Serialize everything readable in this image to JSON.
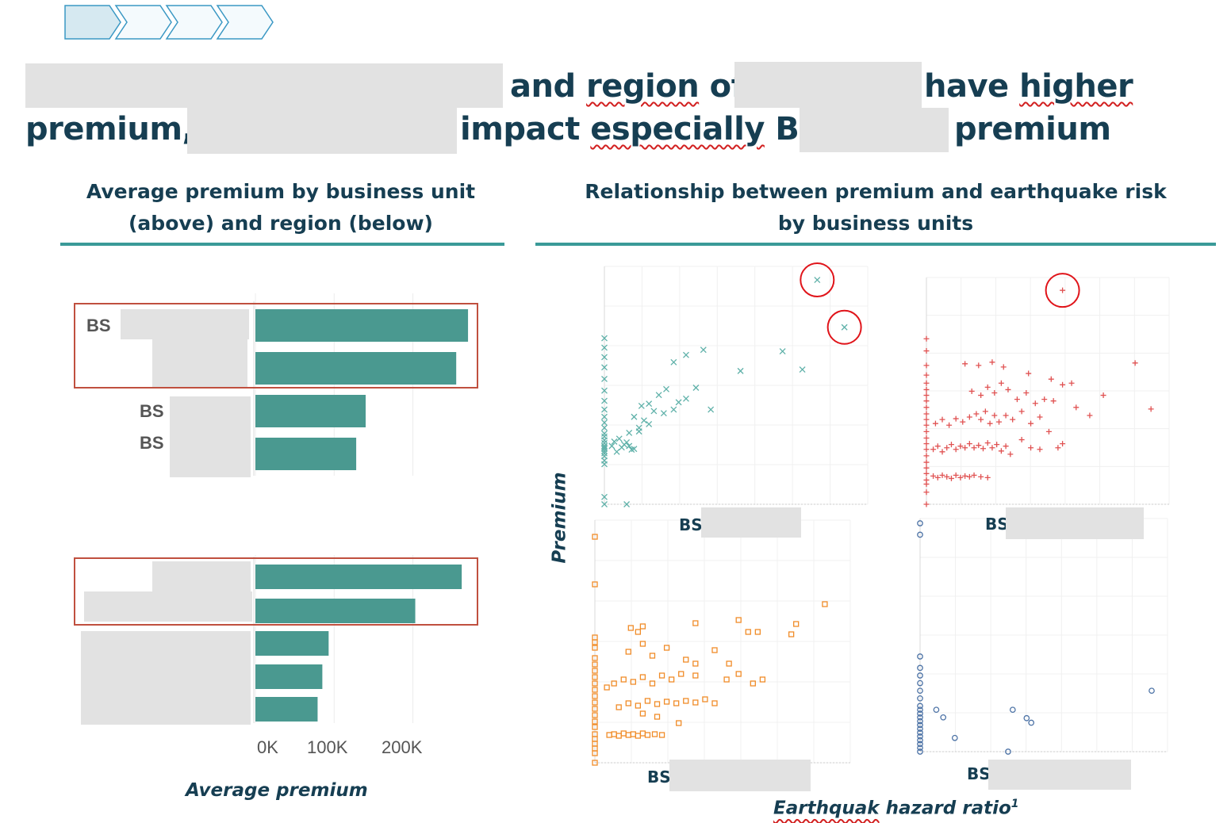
{
  "headline": {
    "line1_part1": "and",
    "line1_part2": "region",
    "line1_part3": "of",
    "line1_part4": "have",
    "line1_part5": "higher",
    "line2_part1": "premium,",
    "line2_part2": "impact",
    "line2_part3": "especially",
    "line2_part4": "BS",
    "line2_part5": "premium"
  },
  "left_section": {
    "title_line1": "Average premium by business unit",
    "title_line2": "(above) and region (below)",
    "xlabel": "Average premium"
  },
  "right_section": {
    "title_line1": "Relationship between premium and earthquake risk",
    "title_line2": "by business units",
    "ylabel": "Premium",
    "xlabel_main": "Earthquak",
    "xlabel_rest": " hazard ratio",
    "xlabel_sup": "1",
    "panel_prefix": "BS"
  },
  "colors": {
    "bar": "#4a9990",
    "highlight_box": "#c0503f",
    "teal": "#5fb1a9",
    "red": "#e05252",
    "orange": "#f08c28",
    "blue": "#4d73a6",
    "circle": "#e0141a",
    "chevron_fill": "#d6e9f1",
    "chevron_stroke": "#3a98c4"
  },
  "chart_data": [
    {
      "type": "bar",
      "orientation": "horizontal",
      "panel": "business unit",
      "categories": [
        "BS",
        "",
        "BS",
        "BS"
      ],
      "values": [
        270000,
        255000,
        140000,
        128000
      ],
      "xlim": [
        0,
        280000
      ]
    },
    {
      "type": "bar",
      "orientation": "horizontal",
      "panel": "region",
      "categories": [
        "",
        "",
        "",
        "",
        ""
      ],
      "values": [
        262000,
        203000,
        93000,
        85000,
        79000
      ],
      "xticks": [
        "0K",
        "100K",
        "200K"
      ],
      "xlim": [
        0,
        280000
      ]
    },
    {
      "type": "scatter",
      "panel": "teal",
      "marker": "x",
      "points": [
        [
          0.0,
          0.55
        ],
        [
          0.0,
          0.6
        ],
        [
          0.0,
          0.66
        ],
        [
          0.0,
          0.7
        ],
        [
          0.0,
          0.73
        ],
        [
          0.0,
          0.76
        ],
        [
          0.0,
          0.78
        ],
        [
          0.0,
          0.8
        ],
        [
          0.0,
          0.84
        ],
        [
          0.0,
          0.88
        ],
        [
          0.0,
          0.93
        ],
        [
          0.0,
          0.97
        ],
        [
          0.0,
          1.05
        ],
        [
          0.0,
          1.12
        ],
        [
          0.0,
          1.2
        ],
        [
          0.0,
          1.3
        ],
        [
          0.0,
          1.42
        ],
        [
          0.0,
          1.56
        ],
        [
          0.0,
          1.72
        ],
        [
          0.0,
          1.88
        ],
        [
          0.0,
          2.02
        ],
        [
          0.0,
          2.15
        ],
        [
          0.0,
          2.28
        ],
        [
          0.0,
          0.1
        ],
        [
          0.0,
          0.0
        ],
        [
          0.03,
          0.8
        ],
        [
          0.05,
          0.72
        ],
        [
          0.07,
          0.78
        ],
        [
          0.09,
          0.85
        ],
        [
          0.11,
          0.75
        ],
        [
          0.06,
          0.9
        ],
        [
          0.08,
          0.82
        ],
        [
          0.04,
          0.86
        ],
        [
          0.1,
          0.8
        ],
        [
          0.12,
          0.76
        ],
        [
          0.09,
          0.0
        ],
        [
          0.1,
          0.98
        ],
        [
          0.12,
          1.2
        ],
        [
          0.14,
          1.05
        ],
        [
          0.15,
          1.35
        ],
        [
          0.16,
          1.15
        ],
        [
          0.18,
          1.38
        ],
        [
          0.2,
          1.28
        ],
        [
          0.22,
          1.5
        ],
        [
          0.24,
          1.25
        ],
        [
          0.25,
          1.58
        ],
        [
          0.28,
          1.3
        ],
        [
          0.3,
          1.4
        ],
        [
          0.33,
          1.45
        ],
        [
          0.37,
          1.6
        ],
        [
          0.43,
          1.3
        ],
        [
          0.28,
          1.95
        ],
        [
          0.33,
          2.05
        ],
        [
          0.4,
          2.12
        ],
        [
          0.55,
          1.83
        ],
        [
          0.72,
          2.1
        ],
        [
          0.8,
          1.85
        ],
        [
          0.18,
          1.1
        ],
        [
          0.14,
          1.0
        ],
        [
          0.86,
          3.08
        ],
        [
          0.97,
          2.43
        ]
      ],
      "circled": [
        [
          0.86,
          3.08
        ],
        [
          0.97,
          2.43
        ]
      ]
    },
    {
      "type": "scatter",
      "panel": "red",
      "marker": "+",
      "points": [
        [
          0.0,
          0.0
        ],
        [
          0.0,
          0.15
        ],
        [
          0.0,
          0.25
        ],
        [
          0.0,
          0.3
        ],
        [
          0.0,
          0.38
        ],
        [
          0.0,
          0.45
        ],
        [
          0.0,
          0.52
        ],
        [
          0.0,
          0.6
        ],
        [
          0.0,
          0.68
        ],
        [
          0.0,
          0.75
        ],
        [
          0.0,
          0.82
        ],
        [
          0.0,
          0.9
        ],
        [
          0.0,
          0.98
        ],
        [
          0.0,
          1.05
        ],
        [
          0.0,
          1.12
        ],
        [
          0.0,
          1.2
        ],
        [
          0.0,
          1.28
        ],
        [
          0.0,
          1.35
        ],
        [
          0.0,
          1.42
        ],
        [
          0.0,
          1.5
        ],
        [
          0.0,
          1.6
        ],
        [
          0.0,
          1.72
        ],
        [
          0.0,
          1.9
        ],
        [
          0.0,
          2.05
        ],
        [
          0.03,
          0.35
        ],
        [
          0.05,
          0.33
        ],
        [
          0.07,
          0.36
        ],
        [
          0.09,
          0.34
        ],
        [
          0.11,
          0.32
        ],
        [
          0.13,
          0.36
        ],
        [
          0.15,
          0.33
        ],
        [
          0.17,
          0.35
        ],
        [
          0.19,
          0.34
        ],
        [
          0.21,
          0.36
        ],
        [
          0.24,
          0.34
        ],
        [
          0.27,
          0.33
        ],
        [
          0.03,
          0.68
        ],
        [
          0.05,
          0.72
        ],
        [
          0.07,
          0.65
        ],
        [
          0.09,
          0.7
        ],
        [
          0.11,
          0.74
        ],
        [
          0.13,
          0.68
        ],
        [
          0.15,
          0.72
        ],
        [
          0.17,
          0.7
        ],
        [
          0.19,
          0.75
        ],
        [
          0.21,
          0.7
        ],
        [
          0.23,
          0.73
        ],
        [
          0.25,
          0.69
        ],
        [
          0.27,
          0.76
        ],
        [
          0.29,
          0.7
        ],
        [
          0.31,
          0.74
        ],
        [
          0.33,
          0.66
        ],
        [
          0.35,
          0.72
        ],
        [
          0.37,
          0.62
        ],
        [
          0.04,
          1.0
        ],
        [
          0.07,
          1.05
        ],
        [
          0.1,
          0.98
        ],
        [
          0.13,
          1.06
        ],
        [
          0.16,
          1.02
        ],
        [
          0.19,
          1.08
        ],
        [
          0.22,
          1.12
        ],
        [
          0.24,
          1.05
        ],
        [
          0.26,
          1.15
        ],
        [
          0.28,
          1.0
        ],
        [
          0.3,
          1.1
        ],
        [
          0.32,
          1.02
        ],
        [
          0.35,
          1.1
        ],
        [
          0.38,
          1.05
        ],
        [
          0.42,
          1.15
        ],
        [
          0.46,
          1.0
        ],
        [
          0.5,
          1.08
        ],
        [
          0.2,
          1.4
        ],
        [
          0.24,
          1.35
        ],
        [
          0.27,
          1.45
        ],
        [
          0.3,
          1.38
        ],
        [
          0.33,
          1.5
        ],
        [
          0.36,
          1.42
        ],
        [
          0.4,
          1.3
        ],
        [
          0.44,
          1.38
        ],
        [
          0.48,
          1.25
        ],
        [
          0.52,
          1.3
        ],
        [
          0.56,
          1.28
        ],
        [
          0.42,
          0.8
        ],
        [
          0.46,
          0.7
        ],
        [
          0.5,
          0.68
        ],
        [
          0.54,
          0.9
        ],
        [
          0.6,
          0.75
        ],
        [
          0.66,
          1.2
        ],
        [
          0.72,
          1.1
        ],
        [
          0.78,
          1.35
        ],
        [
          0.92,
          1.75
        ],
        [
          0.99,
          1.18
        ],
        [
          0.58,
          0.7
        ],
        [
          0.17,
          1.74
        ],
        [
          0.23,
          1.72
        ],
        [
          0.29,
          1.76
        ],
        [
          0.34,
          1.7
        ],
        [
          0.45,
          1.62
        ],
        [
          0.55,
          1.55
        ],
        [
          0.6,
          1.48
        ],
        [
          0.64,
          1.5
        ],
        [
          0.6,
          2.65
        ]
      ],
      "circled": [
        [
          0.6,
          2.65
        ]
      ]
    },
    {
      "type": "scatter",
      "panel": "orange",
      "marker": "square",
      "points": [
        [
          0.0,
          0.0
        ],
        [
          0.0,
          0.12
        ],
        [
          0.0,
          0.18
        ],
        [
          0.0,
          0.24
        ],
        [
          0.0,
          0.3
        ],
        [
          0.0,
          0.36
        ],
        [
          0.0,
          0.45
        ],
        [
          0.0,
          0.52
        ],
        [
          0.0,
          0.6
        ],
        [
          0.0,
          0.68
        ],
        [
          0.0,
          0.76
        ],
        [
          0.0,
          0.84
        ],
        [
          0.0,
          0.92
        ],
        [
          0.0,
          1.0
        ],
        [
          0.0,
          1.08
        ],
        [
          0.0,
          1.16
        ],
        [
          0.0,
          1.24
        ],
        [
          0.0,
          1.32
        ],
        [
          0.0,
          1.45
        ],
        [
          0.0,
          1.52
        ],
        [
          0.0,
          1.58
        ],
        [
          0.0,
          2.25
        ],
        [
          0.0,
          2.85
        ],
        [
          0.06,
          0.35
        ],
        [
          0.08,
          0.36
        ],
        [
          0.1,
          0.34
        ],
        [
          0.12,
          0.37
        ],
        [
          0.14,
          0.35
        ],
        [
          0.16,
          0.36
        ],
        [
          0.18,
          0.34
        ],
        [
          0.2,
          0.37
        ],
        [
          0.22,
          0.35
        ],
        [
          0.25,
          0.36
        ],
        [
          0.28,
          0.35
        ],
        [
          0.1,
          0.7
        ],
        [
          0.14,
          0.75
        ],
        [
          0.18,
          0.72
        ],
        [
          0.22,
          0.78
        ],
        [
          0.26,
          0.74
        ],
        [
          0.3,
          0.77
        ],
        [
          0.34,
          0.75
        ],
        [
          0.38,
          0.78
        ],
        [
          0.42,
          0.76
        ],
        [
          0.46,
          0.8
        ],
        [
          0.5,
          0.75
        ],
        [
          0.2,
          0.62
        ],
        [
          0.26,
          0.58
        ],
        [
          0.35,
          0.5
        ],
        [
          0.08,
          1.0
        ],
        [
          0.12,
          1.05
        ],
        [
          0.16,
          1.02
        ],
        [
          0.2,
          1.08
        ],
        [
          0.24,
          1.0
        ],
        [
          0.28,
          1.1
        ],
        [
          0.32,
          1.05
        ],
        [
          0.36,
          1.12
        ],
        [
          0.42,
          1.1
        ],
        [
          0.55,
          1.05
        ],
        [
          0.6,
          1.12
        ],
        [
          0.66,
          1.0
        ],
        [
          0.7,
          1.05
        ],
        [
          0.05,
          0.95
        ],
        [
          0.14,
          1.4
        ],
        [
          0.2,
          1.5
        ],
        [
          0.24,
          1.35
        ],
        [
          0.3,
          1.45
        ],
        [
          0.38,
          1.3
        ],
        [
          0.42,
          1.25
        ],
        [
          0.5,
          1.42
        ],
        [
          0.56,
          1.25
        ],
        [
          0.15,
          1.7
        ],
        [
          0.18,
          1.65
        ],
        [
          0.2,
          1.72
        ],
        [
          0.42,
          1.76
        ],
        [
          0.6,
          1.8
        ],
        [
          0.64,
          1.65
        ],
        [
          0.68,
          1.65
        ],
        [
          0.82,
          1.62
        ],
        [
          0.84,
          1.75
        ],
        [
          0.96,
          2.0
        ]
      ]
    },
    {
      "type": "scatter",
      "panel": "blue",
      "marker": "circle",
      "points": [
        [
          0.0,
          0.0
        ],
        [
          0.0,
          0.05
        ],
        [
          0.0,
          0.1
        ],
        [
          0.0,
          0.15
        ],
        [
          0.0,
          0.2
        ],
        [
          0.0,
          0.25
        ],
        [
          0.0,
          0.3
        ],
        [
          0.0,
          0.35
        ],
        [
          0.0,
          0.4
        ],
        [
          0.0,
          0.45
        ],
        [
          0.0,
          0.5
        ],
        [
          0.0,
          0.55
        ],
        [
          0.0,
          0.6
        ],
        [
          0.0,
          0.7
        ],
        [
          0.0,
          0.8
        ],
        [
          0.0,
          0.9
        ],
        [
          0.0,
          1.0
        ],
        [
          0.0,
          1.1
        ],
        [
          0.0,
          1.25
        ],
        [
          0.0,
          2.85
        ],
        [
          0.0,
          3.0
        ],
        [
          0.07,
          0.55
        ],
        [
          0.1,
          0.45
        ],
        [
          0.15,
          0.18
        ],
        [
          0.38,
          0.0
        ],
        [
          0.4,
          0.55
        ],
        [
          0.46,
          0.44
        ],
        [
          0.48,
          0.38
        ],
        [
          1.0,
          0.8
        ]
      ]
    }
  ]
}
